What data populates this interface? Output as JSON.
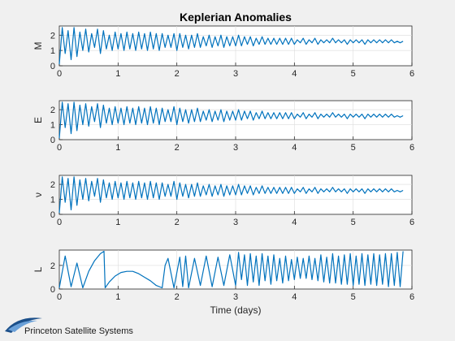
{
  "figure": {
    "background": "#f0f0f0",
    "series_color": "#0072bd",
    "logo_text": "Princeton Satellite Systems",
    "logo_color": "#1b4f8a"
  },
  "chart_data": [
    {
      "type": "line",
      "title": "Keplerian Anomalies",
      "ylabel": "M",
      "xlabel": "",
      "xlim": [
        0,
        6
      ],
      "ylim": [
        0,
        2.6
      ],
      "xticks": [
        0,
        1,
        2,
        3,
        4,
        5,
        6
      ],
      "yticks": [
        0,
        1,
        2
      ],
      "grid": true,
      "series": [
        {
          "x": [
            0,
            0.05,
            0.1,
            0.15,
            0.2,
            0.25,
            0.3,
            0.35,
            0.4,
            0.45,
            0.5,
            0.55,
            0.6,
            0.65,
            0.7,
            0.75,
            0.8,
            0.85,
            0.9,
            0.95,
            1.0,
            1.05,
            1.1,
            1.15,
            1.2,
            1.25,
            1.3,
            1.35,
            1.4,
            1.45,
            1.5,
            1.55,
            1.6,
            1.65,
            1.7,
            1.75,
            1.8,
            1.85,
            1.9,
            1.95,
            2.0,
            2.05,
            2.1,
            2.15,
            2.2,
            2.25,
            2.3,
            2.35,
            2.4,
            2.45,
            2.5,
            2.55,
            2.6,
            2.65,
            2.7,
            2.75,
            2.8,
            2.85,
            2.9,
            2.95,
            3.0,
            3.05,
            3.1,
            3.15,
            3.2,
            3.25,
            3.3,
            3.35,
            3.4,
            3.45,
            3.5,
            3.55,
            3.6,
            3.65,
            3.7,
            3.75,
            3.8,
            3.85,
            3.9,
            3.95,
            4.0,
            4.05,
            4.1,
            4.15,
            4.2,
            4.25,
            4.3,
            4.35,
            4.4,
            4.45,
            4.5,
            4.55,
            4.6,
            4.65,
            4.7,
            4.75,
            4.8,
            4.85,
            4.9,
            4.95,
            5.0,
            5.05,
            5.1,
            5.15,
            5.2,
            5.25,
            5.3,
            5.35,
            5.4,
            5.45,
            5.5,
            5.55,
            5.6,
            5.65,
            5.7,
            5.75,
            5.8,
            5.85
          ],
          "y": [
            0.1,
            2.5,
            0.8,
            2.3,
            0.4,
            2.5,
            0.6,
            2.2,
            1.0,
            2.4,
            0.9,
            2.1,
            1.2,
            2.4,
            0.8,
            2.3,
            1.1,
            2.0,
            1.0,
            2.2,
            1.1,
            2.1,
            1.0,
            2.2,
            1.1,
            2.1,
            1.0,
            2.2,
            1.1,
            2.1,
            1.0,
            2.2,
            1.1,
            2.1,
            1.0,
            2.1,
            1.2,
            2.0,
            1.2,
            2.1,
            1.0,
            2.1,
            1.2,
            2.0,
            1.1,
            2.0,
            1.2,
            2.1,
            1.2,
            1.9,
            1.3,
            2.0,
            1.2,
            1.9,
            1.3,
            2.0,
            1.2,
            1.9,
            1.3,
            1.9,
            1.3,
            2.0,
            1.3,
            1.9,
            1.4,
            1.9,
            1.3,
            1.8,
            1.4,
            1.9,
            1.4,
            1.8,
            1.4,
            1.8,
            1.4,
            1.8,
            1.4,
            1.8,
            1.4,
            1.8,
            1.4,
            1.7,
            1.5,
            1.8,
            1.4,
            1.7,
            1.5,
            1.8,
            1.4,
            1.7,
            1.5,
            1.7,
            1.5,
            1.8,
            1.5,
            1.7,
            1.5,
            1.7,
            1.4,
            1.7,
            1.5,
            1.7,
            1.5,
            1.7,
            1.4,
            1.7,
            1.5,
            1.7,
            1.5,
            1.7,
            1.5,
            1.7,
            1.5,
            1.7,
            1.5,
            1.6,
            1.5,
            1.6
          ]
        }
      ]
    },
    {
      "type": "line",
      "title": "",
      "ylabel": "E",
      "xlabel": "",
      "xlim": [
        0,
        6
      ],
      "ylim": [
        0,
        2.6
      ],
      "xticks": [
        0,
        1,
        2,
        3,
        4,
        5,
        6
      ],
      "yticks": [
        0,
        1,
        2
      ],
      "grid": true,
      "series": [
        {
          "x": [
            0,
            0.05,
            0.1,
            0.15,
            0.2,
            0.25,
            0.3,
            0.35,
            0.4,
            0.45,
            0.5,
            0.55,
            0.6,
            0.65,
            0.7,
            0.75,
            0.8,
            0.85,
            0.9,
            0.95,
            1.0,
            1.05,
            1.1,
            1.15,
            1.2,
            1.25,
            1.3,
            1.35,
            1.4,
            1.45,
            1.5,
            1.55,
            1.6,
            1.65,
            1.7,
            1.75,
            1.8,
            1.85,
            1.9,
            1.95,
            2.0,
            2.05,
            2.1,
            2.15,
            2.2,
            2.25,
            2.3,
            2.35,
            2.4,
            2.45,
            2.5,
            2.55,
            2.6,
            2.65,
            2.7,
            2.75,
            2.8,
            2.85,
            2.9,
            2.95,
            3.0,
            3.05,
            3.1,
            3.15,
            3.2,
            3.25,
            3.3,
            3.35,
            3.4,
            3.45,
            3.5,
            3.55,
            3.6,
            3.65,
            3.7,
            3.75,
            3.8,
            3.85,
            3.9,
            3.95,
            4.0,
            4.05,
            4.1,
            4.15,
            4.2,
            4.25,
            4.3,
            4.35,
            4.4,
            4.45,
            4.5,
            4.55,
            4.6,
            4.65,
            4.7,
            4.75,
            4.8,
            4.85,
            4.9,
            4.95,
            5.0,
            5.05,
            5.1,
            5.15,
            5.2,
            5.25,
            5.3,
            5.35,
            5.4,
            5.45,
            5.5,
            5.55,
            5.6,
            5.65,
            5.7,
            5.75,
            5.8,
            5.85
          ],
          "y": [
            0.1,
            2.5,
            0.8,
            2.4,
            0.4,
            2.5,
            0.6,
            2.3,
            1.0,
            2.4,
            0.9,
            2.2,
            1.2,
            2.4,
            0.8,
            2.3,
            1.1,
            2.1,
            1.0,
            2.2,
            1.1,
            2.1,
            1.0,
            2.2,
            1.1,
            2.1,
            1.0,
            2.2,
            1.1,
            2.1,
            1.0,
            2.2,
            1.1,
            2.1,
            1.0,
            2.1,
            1.2,
            2.0,
            1.2,
            2.2,
            1.0,
            2.1,
            1.2,
            2.0,
            1.1,
            2.0,
            1.2,
            2.1,
            1.2,
            1.9,
            1.3,
            2.0,
            1.2,
            1.9,
            1.3,
            2.0,
            1.2,
            1.9,
            1.3,
            1.9,
            1.3,
            2.0,
            1.3,
            1.9,
            1.4,
            1.9,
            1.3,
            1.8,
            1.4,
            1.9,
            1.4,
            1.8,
            1.4,
            1.8,
            1.4,
            1.8,
            1.4,
            1.8,
            1.4,
            1.8,
            1.4,
            1.7,
            1.5,
            1.8,
            1.4,
            1.7,
            1.5,
            1.8,
            1.4,
            1.7,
            1.5,
            1.7,
            1.5,
            1.8,
            1.5,
            1.7,
            1.5,
            1.7,
            1.4,
            1.7,
            1.5,
            1.7,
            1.5,
            1.7,
            1.4,
            1.7,
            1.5,
            1.7,
            1.5,
            1.7,
            1.5,
            1.7,
            1.5,
            1.7,
            1.5,
            1.6,
            1.5,
            1.6
          ]
        }
      ]
    },
    {
      "type": "line",
      "title": "",
      "ylabel": "ν",
      "xlabel": "",
      "xlim": [
        0,
        6
      ],
      "ylim": [
        0,
        2.6
      ],
      "xticks": [
        0,
        1,
        2,
        3,
        4,
        5,
        6
      ],
      "yticks": [
        0,
        1,
        2
      ],
      "grid": true,
      "series": [
        {
          "x": [
            0,
            0.05,
            0.1,
            0.15,
            0.2,
            0.25,
            0.3,
            0.35,
            0.4,
            0.45,
            0.5,
            0.55,
            0.6,
            0.65,
            0.7,
            0.75,
            0.8,
            0.85,
            0.9,
            0.95,
            1.0,
            1.05,
            1.1,
            1.15,
            1.2,
            1.25,
            1.3,
            1.35,
            1.4,
            1.45,
            1.5,
            1.55,
            1.6,
            1.65,
            1.7,
            1.75,
            1.8,
            1.85,
            1.9,
            1.95,
            2.0,
            2.05,
            2.1,
            2.15,
            2.2,
            2.25,
            2.3,
            2.35,
            2.4,
            2.45,
            2.5,
            2.55,
            2.6,
            2.65,
            2.7,
            2.75,
            2.8,
            2.85,
            2.9,
            2.95,
            3.0,
            3.05,
            3.1,
            3.15,
            3.2,
            3.25,
            3.3,
            3.35,
            3.4,
            3.45,
            3.5,
            3.55,
            3.6,
            3.65,
            3.7,
            3.75,
            3.8,
            3.85,
            3.9,
            3.95,
            4.0,
            4.05,
            4.1,
            4.15,
            4.2,
            4.25,
            4.3,
            4.35,
            4.4,
            4.45,
            4.5,
            4.55,
            4.6,
            4.65,
            4.7,
            4.75,
            4.8,
            4.85,
            4.9,
            4.95,
            5.0,
            5.05,
            5.1,
            5.15,
            5.2,
            5.25,
            5.3,
            5.35,
            5.4,
            5.45,
            5.5,
            5.55,
            5.6,
            5.65,
            5.7,
            5.75,
            5.8,
            5.85
          ],
          "y": [
            0.1,
            2.5,
            0.8,
            2.4,
            0.3,
            2.5,
            0.6,
            2.3,
            1.0,
            2.4,
            0.9,
            2.2,
            1.2,
            2.4,
            0.8,
            2.3,
            1.1,
            2.1,
            1.0,
            2.2,
            1.1,
            2.1,
            1.0,
            2.2,
            1.1,
            2.1,
            1.0,
            2.2,
            1.1,
            2.1,
            1.0,
            2.2,
            1.1,
            2.1,
            1.0,
            2.1,
            1.2,
            2.0,
            1.2,
            2.2,
            1.0,
            2.1,
            1.2,
            2.0,
            1.1,
            2.0,
            1.2,
            2.1,
            1.2,
            1.9,
            1.3,
            2.0,
            1.2,
            1.9,
            1.3,
            2.0,
            1.2,
            1.9,
            1.3,
            1.9,
            1.3,
            2.0,
            1.3,
            1.9,
            1.4,
            1.9,
            1.3,
            1.8,
            1.4,
            1.9,
            1.4,
            1.8,
            1.4,
            1.8,
            1.4,
            1.8,
            1.4,
            1.8,
            1.4,
            1.8,
            1.4,
            1.7,
            1.5,
            1.8,
            1.4,
            1.7,
            1.5,
            1.8,
            1.4,
            1.7,
            1.5,
            1.7,
            1.5,
            1.8,
            1.5,
            1.7,
            1.5,
            1.7,
            1.4,
            1.7,
            1.5,
            1.7,
            1.5,
            1.7,
            1.4,
            1.7,
            1.5,
            1.7,
            1.5,
            1.7,
            1.5,
            1.7,
            1.5,
            1.7,
            1.5,
            1.6,
            1.5,
            1.6
          ]
        }
      ]
    },
    {
      "type": "line",
      "title": "",
      "ylabel": "L",
      "xlabel": "Time (days)",
      "xlim": [
        0,
        6
      ],
      "ylim": [
        0,
        3.3
      ],
      "xticks": [
        0,
        1,
        2,
        3,
        4,
        5,
        6
      ],
      "yticks": [
        0,
        2
      ],
      "grid": true,
      "series": [
        {
          "x": [
            0,
            0.1,
            0.2,
            0.3,
            0.4,
            0.5,
            0.6,
            0.7,
            0.76,
            0.78,
            0.85,
            0.95,
            1.05,
            1.15,
            1.25,
            1.35,
            1.45,
            1.55,
            1.65,
            1.75,
            1.8,
            1.85,
            1.95,
            2.05,
            2.1,
            2.15,
            2.2,
            2.3,
            2.4,
            2.5,
            2.6,
            2.7,
            2.8,
            2.9,
            3.0,
            3.05,
            3.1,
            3.15,
            3.2,
            3.25,
            3.3,
            3.35,
            3.4,
            3.45,
            3.5,
            3.55,
            3.6,
            3.65,
            3.7,
            3.75,
            3.8,
            3.85,
            3.9,
            3.95,
            4.0,
            4.05,
            4.1,
            4.15,
            4.2,
            4.25,
            4.3,
            4.35,
            4.4,
            4.45,
            4.5,
            4.55,
            4.6,
            4.65,
            4.7,
            4.75,
            4.8,
            4.85,
            4.9,
            4.95,
            5.0,
            5.05,
            5.1,
            5.15,
            5.2,
            5.25,
            5.3,
            5.35,
            5.4,
            5.45,
            5.5,
            5.55,
            5.6,
            5.65,
            5.7,
            5.75,
            5.8,
            5.85
          ],
          "y": [
            0.1,
            2.8,
            0.2,
            2.2,
            0.1,
            1.5,
            2.4,
            3.0,
            3.2,
            0.1,
            0.6,
            1.1,
            1.4,
            1.5,
            1.5,
            1.3,
            1.0,
            0.7,
            0.3,
            0.1,
            2.0,
            2.6,
            0.1,
            2.7,
            0.2,
            2.8,
            0.1,
            2.6,
            0.3,
            2.8,
            0.2,
            2.7,
            0.3,
            2.9,
            0.3,
            3.1,
            0.8,
            2.9,
            0.3,
            3.0,
            0.6,
            2.8,
            0.3,
            3.0,
            0.7,
            2.8,
            0.4,
            2.9,
            0.7,
            2.6,
            0.5,
            2.8,
            0.7,
            2.5,
            0.8,
            2.7,
            0.9,
            2.6,
            0.9,
            2.8,
            0.8,
            2.6,
            0.7,
            2.9,
            0.6,
            2.7,
            0.5,
            3.0,
            0.5,
            2.8,
            0.4,
            2.9,
            0.4,
            3.0,
            0.3,
            2.8,
            0.4,
            3.0,
            0.3,
            2.9,
            0.4,
            3.0,
            0.3,
            2.9,
            0.4,
            3.0,
            0.2,
            3.0,
            0.3,
            3.1,
            0.2,
            3.2
          ]
        }
      ]
    }
  ]
}
